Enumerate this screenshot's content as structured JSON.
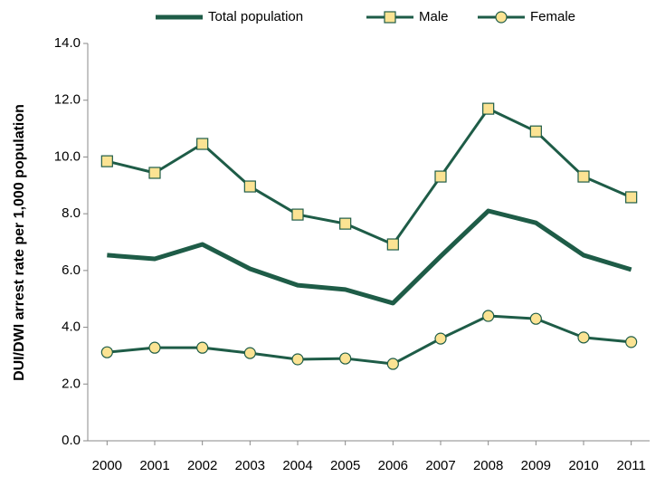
{
  "chart_data": {
    "type": "line",
    "y_label": "DUI/DWI arrest rate per 1,000 population",
    "categories": [
      "2000",
      "2001",
      "2002",
      "2003",
      "2004",
      "2005",
      "2006",
      "2007",
      "2008",
      "2009",
      "2010",
      "2011"
    ],
    "series": [
      {
        "name": "Total population",
        "color": "#1e5c47",
        "marker": "none",
        "values": [
          6.54,
          6.41,
          6.92,
          6.06,
          5.48,
          5.33,
          4.85,
          6.5,
          8.1,
          7.68,
          6.54,
          6.03
        ]
      },
      {
        "name": "Male",
        "color": "#1e5c47",
        "marker": "square",
        "values": [
          9.85,
          9.44,
          10.46,
          8.96,
          7.97,
          7.65,
          6.92,
          9.31,
          11.7,
          10.9,
          9.31,
          8.58
        ]
      },
      {
        "name": "Female",
        "color": "#1e5c47",
        "marker": "circle",
        "values": [
          3.12,
          3.28,
          3.28,
          3.09,
          2.87,
          2.9,
          2.71,
          3.6,
          4.4,
          4.3,
          3.64,
          3.48
        ]
      }
    ],
    "marker_fill": "#fbe393",
    "ylim": [
      0,
      14
    ],
    "yticks": [
      {
        "value": 0,
        "label": "0.0"
      },
      {
        "value": 2,
        "label": "2.0"
      },
      {
        "value": 4,
        "label": "4.0"
      },
      {
        "value": 6,
        "label": "6.0"
      },
      {
        "value": 8,
        "label": "8.0"
      },
      {
        "value": 10,
        "label": "10.0"
      },
      {
        "value": 12,
        "label": "12.0"
      },
      {
        "value": 14,
        "label": "14.0"
      }
    ],
    "grid": false
  }
}
